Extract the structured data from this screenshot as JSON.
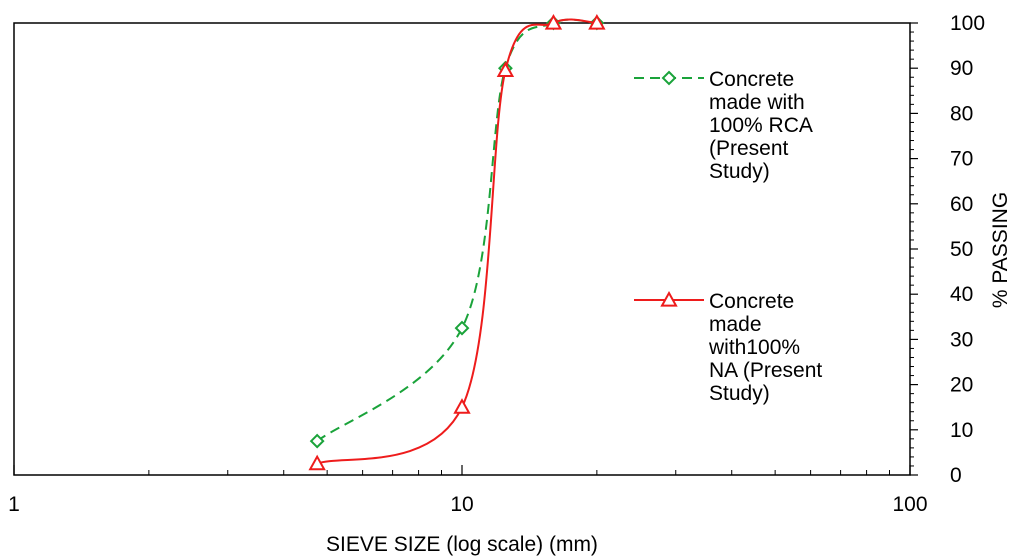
{
  "chart_data": {
    "type": "line",
    "title": "",
    "xlabel": "SIEVE SIZE (log scale) (mm)",
    "ylabel": "% PASSING",
    "xscale": "log",
    "xlim": [
      1,
      100
    ],
    "ylim": [
      0,
      100
    ],
    "x_tick_labels": [
      "1",
      "10",
      "100"
    ],
    "y_tick_labels": [
      "0",
      "10",
      "20",
      "30",
      "40",
      "50",
      "60",
      "70",
      "80",
      "90",
      "100"
    ],
    "y_axis_position": "right",
    "grid": false,
    "legend_position": "right-inside",
    "series": [
      {
        "name": "Concrete made with 100% RCA (Present Study)",
        "legend_lines": [
          "Concrete",
          "made with",
          "100% RCA",
          "(Present",
          "Study)"
        ],
        "color": "#1aa33a",
        "line_style": "dashed",
        "marker": "diamond",
        "x": [
          4.75,
          10,
          12.5,
          16,
          20
        ],
        "y": [
          7.5,
          32.5,
          90,
          100,
          100
        ]
      },
      {
        "name": "Concrete made with100% NA (Present Study)",
        "legend_lines": [
          "Concrete",
          "made",
          "with100%",
          "NA (Present",
          "Study)"
        ],
        "color": "#ee1c1c",
        "line_style": "solid",
        "marker": "triangle",
        "x": [
          4.75,
          10,
          12.5,
          16,
          20
        ],
        "y": [
          2.5,
          15,
          89.5,
          100,
          100
        ]
      }
    ]
  }
}
